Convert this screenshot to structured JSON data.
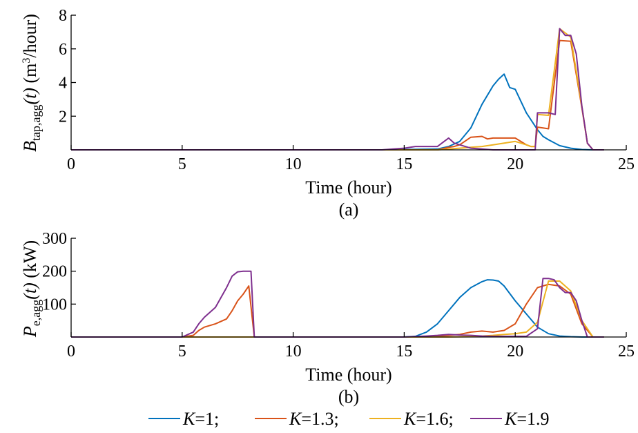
{
  "chart_data": [
    {
      "type": "line",
      "panel_label": "(a)",
      "xlabel": "Time (hour)",
      "ylabel": {
        "symbol": "B",
        "subscript": "tap,agg",
        "arg": "(t)",
        "unit_pre": "(m",
        "unit_sup": "3",
        "unit_post": "/hour)"
      },
      "xlim": [
        0,
        25
      ],
      "ylim": [
        0,
        8
      ],
      "xticks": [
        0,
        5,
        10,
        15,
        20,
        25
      ],
      "yticks": [
        2,
        4,
        6,
        8
      ],
      "grid": false,
      "series": [
        {
          "name": "K=1",
          "color": "#0072BD",
          "x": [
            0,
            14,
            16.5,
            17,
            17.5,
            18,
            18.5,
            19,
            19.25,
            19.5,
            19.75,
            20,
            20.25,
            20.5,
            21,
            21.25,
            21.5,
            22,
            22.5,
            23,
            23.5,
            24
          ],
          "y": [
            0,
            0,
            0.05,
            0.2,
            0.5,
            1.3,
            2.7,
            3.8,
            4.2,
            4.5,
            3.7,
            3.6,
            2.9,
            2.2,
            1.2,
            0.8,
            0.6,
            0.25,
            0.1,
            0.02,
            0,
            0
          ]
        },
        {
          "name": "K=1.3",
          "color": "#D95319",
          "x": [
            0,
            14,
            16.5,
            17,
            17.25,
            17.5,
            18,
            18.5,
            18.75,
            19,
            19.5,
            20,
            20.5,
            20.7,
            20.9,
            21,
            21.25,
            21.5,
            22,
            22.5,
            23,
            23.25,
            23.5,
            24
          ],
          "y": [
            0,
            0,
            0,
            0.15,
            0.2,
            0.3,
            0.75,
            0.8,
            0.65,
            0.7,
            0.7,
            0.7,
            0.3,
            0.2,
            0.2,
            1.35,
            1.3,
            1.25,
            6.5,
            6.45,
            2.5,
            0.4,
            0,
            0
          ]
        },
        {
          "name": "K=1.6",
          "color": "#EDB120",
          "x": [
            0,
            14,
            16.5,
            17,
            17.5,
            18,
            18.5,
            19,
            19.5,
            20,
            20.5,
            20.7,
            20.9,
            21,
            21.5,
            22,
            22.5,
            23,
            23.25,
            23.5,
            24
          ],
          "y": [
            0,
            0,
            0,
            0.05,
            0.1,
            0.15,
            0.2,
            0.3,
            0.4,
            0.5,
            0.3,
            0.2,
            0.2,
            2.1,
            2.05,
            7.2,
            6.7,
            2.6,
            0.4,
            0,
            0
          ]
        },
        {
          "name": "K=1.9",
          "color": "#7E2F8E",
          "x": [
            0,
            14,
            14.5,
            15,
            15.5,
            16,
            16.5,
            17,
            17.25,
            17.5,
            18,
            18.5,
            19,
            19.5,
            20,
            20.5,
            20.9,
            21,
            21.5,
            21.8,
            22,
            22.25,
            22.5,
            22.75,
            23,
            23.25,
            23.5,
            24
          ],
          "y": [
            0,
            0,
            0.05,
            0.1,
            0.2,
            0.2,
            0.2,
            0.7,
            0.4,
            0.3,
            0.1,
            0.05,
            0,
            0,
            0,
            0,
            0,
            2.2,
            2.2,
            2.1,
            7.2,
            6.8,
            6.8,
            5.7,
            2.6,
            0.4,
            0,
            0
          ]
        }
      ]
    },
    {
      "type": "line",
      "panel_label": "(b)",
      "xlabel": "Time (hour)",
      "ylabel": {
        "symbol": "P",
        "subscript": "e,agg",
        "arg": "(t)",
        "unit": "(kW)"
      },
      "xlim": [
        0,
        25
      ],
      "ylim": [
        0,
        300
      ],
      "xticks": [
        0,
        5,
        10,
        15,
        20,
        25
      ],
      "yticks": [
        100,
        200,
        300
      ],
      "grid": false,
      "series": [
        {
          "name": "K=1",
          "color": "#0072BD",
          "x": [
            0,
            15,
            15.5,
            16,
            16.5,
            17,
            17.5,
            18,
            18.5,
            18.75,
            19,
            19.25,
            19.5,
            20,
            20.5,
            21,
            21.5,
            22,
            22.5,
            23,
            23.5,
            24
          ],
          "y": [
            0,
            0,
            2,
            15,
            40,
            80,
            120,
            150,
            168,
            174,
            173,
            170,
            155,
            110,
            70,
            30,
            10,
            3,
            1,
            0,
            0,
            0
          ]
        },
        {
          "name": "K=1.3",
          "color": "#D95319",
          "x": [
            0,
            5,
            5.5,
            5.75,
            6,
            6.5,
            7,
            7.25,
            7.5,
            7.75,
            8,
            8.25,
            8.5,
            15,
            15.5,
            16,
            17,
            17.5,
            18,
            18.5,
            19,
            19.5,
            20,
            20.5,
            21,
            21.5,
            22,
            22.5,
            23,
            23.5,
            24
          ],
          "y": [
            0,
            0,
            5,
            20,
            30,
            40,
            55,
            80,
            110,
            130,
            155,
            0,
            0,
            0,
            0,
            2,
            5,
            8,
            15,
            18,
            15,
            20,
            40,
            100,
            150,
            160,
            155,
            130,
            40,
            0,
            0
          ]
        },
        {
          "name": "K=1.6",
          "color": "#EDB120",
          "x": [
            0,
            15,
            16,
            17,
            18,
            18.5,
            19,
            19.5,
            20,
            20.5,
            21,
            21.5,
            22,
            22.5,
            23,
            23.5,
            24
          ],
          "y": [
            0,
            0,
            0,
            0,
            1,
            3,
            5,
            8,
            10,
            15,
            45,
            170,
            170,
            140,
            50,
            0,
            0
          ]
        },
        {
          "name": "K=1.9",
          "color": "#7E2F8E",
          "x": [
            0,
            5,
            5.5,
            5.75,
            6,
            6.5,
            7,
            7.25,
            7.5,
            7.75,
            8,
            8.1,
            8.25,
            8.5,
            15,
            16,
            16.5,
            17,
            17.5,
            18,
            18.5,
            19,
            19.5,
            20,
            20.5,
            21,
            21.25,
            21.5,
            21.75,
            22,
            22.25,
            22.5,
            22.75,
            23,
            23.25,
            23.5,
            24
          ],
          "y": [
            0,
            0,
            15,
            40,
            60,
            90,
            150,
            185,
            198,
            200,
            200,
            200,
            0,
            0,
            0,
            3,
            5,
            8,
            6,
            5,
            3,
            2,
            2,
            2,
            2,
            25,
            178,
            178,
            174,
            150,
            135,
            135,
            110,
            50,
            0,
            0,
            0
          ]
        }
      ]
    }
  ],
  "legend": {
    "placement": "bottom",
    "entries": [
      {
        "var": "K",
        "text": "=1;",
        "color": "#0072BD"
      },
      {
        "var": "K",
        "text": "=1.3;",
        "color": "#D95319"
      },
      {
        "var": "K",
        "text": "=1.6;",
        "color": "#EDB120"
      },
      {
        "var": "K",
        "text": "=1.9",
        "color": "#7E2F8E"
      }
    ]
  }
}
